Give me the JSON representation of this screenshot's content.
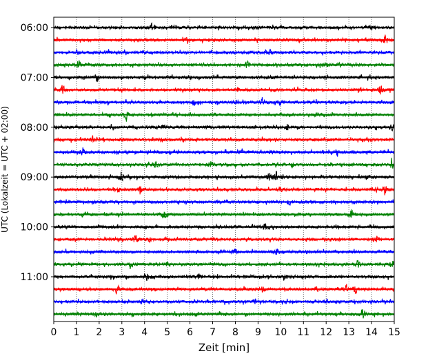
{
  "chart_data": {
    "type": "line",
    "xlabel": "Zeit  [min]",
    "ylabel": "UTC (Lokalzeit = UTC + 02:00)",
    "xlim": [
      0,
      15
    ],
    "x_ticks": [
      "0",
      "1",
      "2",
      "3",
      "4",
      "5",
      "6",
      "7",
      "8",
      "9",
      "10",
      "11",
      "12",
      "13",
      "14",
      "15"
    ],
    "y_ticks": [
      "06:00",
      "07:00",
      "08:00",
      "09:00",
      "10:00",
      "11:00"
    ],
    "grid": "vertical dotted at each minute",
    "colors": [
      "#000000",
      "#ff0000",
      "#0000ff",
      "#008000"
    ],
    "traces": [
      {
        "start": "06:00",
        "color": "#000000",
        "events": [
          [
            4.3,
            1.0
          ],
          [
            10.9,
            0.3
          ],
          [
            14.0,
            0.3
          ]
        ]
      },
      {
        "start": "06:15",
        "color": "#ff0000",
        "events": [
          [
            5.85,
            0.9
          ],
          [
            14.6,
            0.9
          ]
        ]
      },
      {
        "start": "06:30",
        "color": "#0000ff",
        "events": [
          [
            2.4,
            0.3
          ],
          [
            9.5,
            0.7
          ]
        ]
      },
      {
        "start": "06:45",
        "color": "#008000",
        "events": [
          [
            1.1,
            0.8
          ],
          [
            8.5,
            0.9
          ],
          [
            12.0,
            0.25
          ]
        ]
      },
      {
        "start": "07:00",
        "color": "#000000",
        "events": [
          [
            1.9,
            0.8
          ],
          [
            9.5,
            0.4
          ]
        ]
      },
      {
        "start": "07:15",
        "color": "#ff0000",
        "events": [
          [
            0.4,
            0.8
          ],
          [
            8.1,
            0.5
          ],
          [
            14.4,
            0.8
          ]
        ]
      },
      {
        "start": "07:30",
        "color": "#0000ff",
        "events": [
          [
            6.2,
            0.3
          ],
          [
            9.2,
            0.9
          ],
          [
            10.0,
            0.3
          ]
        ]
      },
      {
        "start": "07:45",
        "color": "#008000",
        "events": [
          [
            3.2,
            0.7
          ],
          [
            10.4,
            0.3
          ],
          [
            11.6,
            0.3
          ]
        ]
      },
      {
        "start": "08:00",
        "color": "#000000",
        "events": [
          [
            4.8,
            0.3
          ],
          [
            10.3,
            0.5
          ],
          [
            14.9,
            0.6
          ]
        ]
      },
      {
        "start": "08:15",
        "color": "#ff0000",
        "events": [
          [
            1.7,
            0.5
          ],
          [
            2.2,
            0.3
          ],
          [
            3.0,
            0.3
          ]
        ]
      },
      {
        "start": "08:30",
        "color": "#0000ff",
        "events": [
          [
            1.3,
            0.8
          ],
          [
            8.3,
            0.4
          ],
          [
            9.5,
            0.3
          ],
          [
            12.5,
            0.7
          ]
        ]
      },
      {
        "start": "08:45",
        "color": "#008000",
        "events": [
          [
            4.5,
            0.7
          ],
          [
            6.9,
            0.5
          ],
          [
            10.5,
            0.4
          ],
          [
            14.9,
            0.9
          ]
        ]
      },
      {
        "start": "09:00",
        "color": "#000000",
        "events": [
          [
            3.0,
            0.7
          ],
          [
            9.5,
            0.8
          ],
          [
            9.8,
            0.9
          ],
          [
            13.8,
            0.5
          ]
        ]
      },
      {
        "start": "09:15",
        "color": "#ff0000",
        "events": [
          [
            2.6,
            0.4
          ],
          [
            3.8,
            0.5
          ],
          [
            10.0,
            0.4
          ],
          [
            14.6,
            0.6
          ]
        ]
      },
      {
        "start": "09:30",
        "color": "#0000ff",
        "events": [
          [
            10.4,
            0.5
          ]
        ]
      },
      {
        "start": "09:45",
        "color": "#008000",
        "events": [
          [
            4.9,
            0.8
          ],
          [
            13.1,
            0.9
          ]
        ]
      },
      {
        "start": "10:00",
        "color": "#000000",
        "events": [
          [
            9.3,
            0.6
          ]
        ]
      },
      {
        "start": "10:15",
        "color": "#ff0000",
        "events": [
          [
            3.6,
            0.7
          ],
          [
            4.2,
            0.4
          ],
          [
            14.2,
            0.8
          ]
        ]
      },
      {
        "start": "10:30",
        "color": "#0000ff",
        "events": [
          [
            8.0,
            0.3
          ],
          [
            9.8,
            0.4
          ]
        ]
      },
      {
        "start": "10:45",
        "color": "#008000",
        "events": [
          [
            3.4,
            0.6
          ],
          [
            5.0,
            0.4
          ],
          [
            13.4,
            0.7
          ],
          [
            14.9,
            0.7
          ]
        ]
      },
      {
        "start": "11:00",
        "color": "#000000",
        "events": [
          [
            4.1,
            0.6
          ],
          [
            6.4,
            0.4
          ],
          [
            10.2,
            0.4
          ]
        ]
      },
      {
        "start": "11:15",
        "color": "#ff0000",
        "events": [
          [
            2.8,
            0.7
          ],
          [
            9.2,
            0.5
          ],
          [
            12.9,
            0.8
          ],
          [
            13.3,
            0.7
          ]
        ]
      },
      {
        "start": "11:30",
        "color": "#0000ff",
        "events": [
          [
            3.9,
            0.5
          ],
          [
            8.9,
            0.4
          ]
        ]
      },
      {
        "start": "11:45",
        "color": "#008000",
        "events": [
          [
            1.9,
            0.4
          ],
          [
            13.6,
            0.9
          ]
        ]
      }
    ]
  }
}
